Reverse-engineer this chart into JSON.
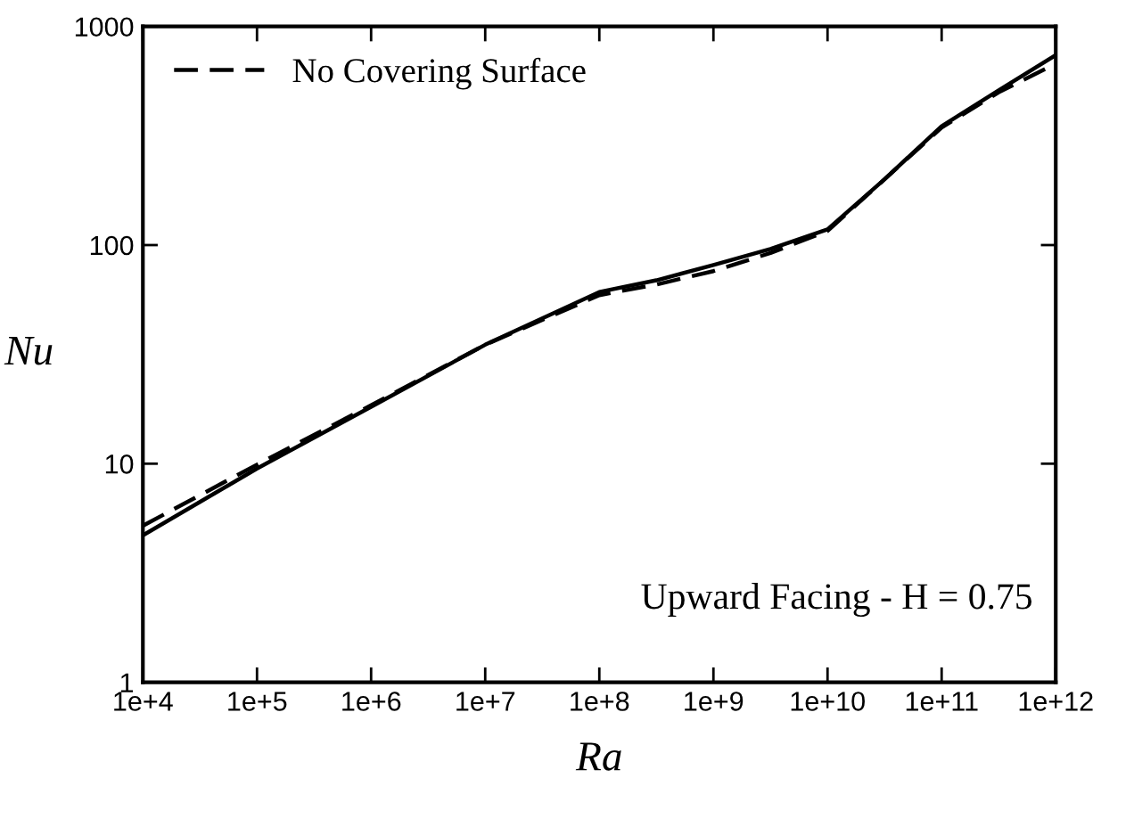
{
  "chart_data": {
    "type": "line",
    "xlabel": "Ra",
    "ylabel": "Nu",
    "log": "xy",
    "xlim": [
      10000,
      1000000000000
    ],
    "ylim": [
      1,
      1000
    ],
    "xticks": [
      {
        "value": 10000,
        "label": "1e+4"
      },
      {
        "value": 100000,
        "label": "1e+5"
      },
      {
        "value": 1000000,
        "label": "1e+6"
      },
      {
        "value": 10000000,
        "label": "1e+7"
      },
      {
        "value": 100000000,
        "label": "1e+8"
      },
      {
        "value": 1000000000,
        "label": "1e+9"
      },
      {
        "value": 10000000000,
        "label": "1e+10"
      },
      {
        "value": 100000000000,
        "label": "1e+11"
      },
      {
        "value": 1000000000000,
        "label": "1e+12"
      }
    ],
    "yticks": [
      1,
      10,
      100,
      1000
    ],
    "x": [
      10000,
      100000,
      1000000,
      10000000,
      100000000,
      316000000,
      1000000000,
      3160000000,
      10000000000,
      31600000000,
      100000000000,
      316000000000,
      1000000000000
    ],
    "series": [
      {
        "color": "#000000",
        "line_style": "solid",
        "values": [
          4.7,
          9.5,
          18.2,
          35,
          61,
          69,
          81,
          96,
          118,
          200,
          350,
          510,
          740
        ]
      },
      {
        "name": "No Covering Surface",
        "color": "#000000",
        "line_style": "dashed",
        "values": [
          5.2,
          9.9,
          18.5,
          35,
          59,
          66,
          76,
          92,
          116,
          200,
          345,
          500,
          675
        ]
      }
    ],
    "legend": "top left",
    "grid": false,
    "annotations": [
      "Upward Facing - H = 0.75"
    ]
  }
}
